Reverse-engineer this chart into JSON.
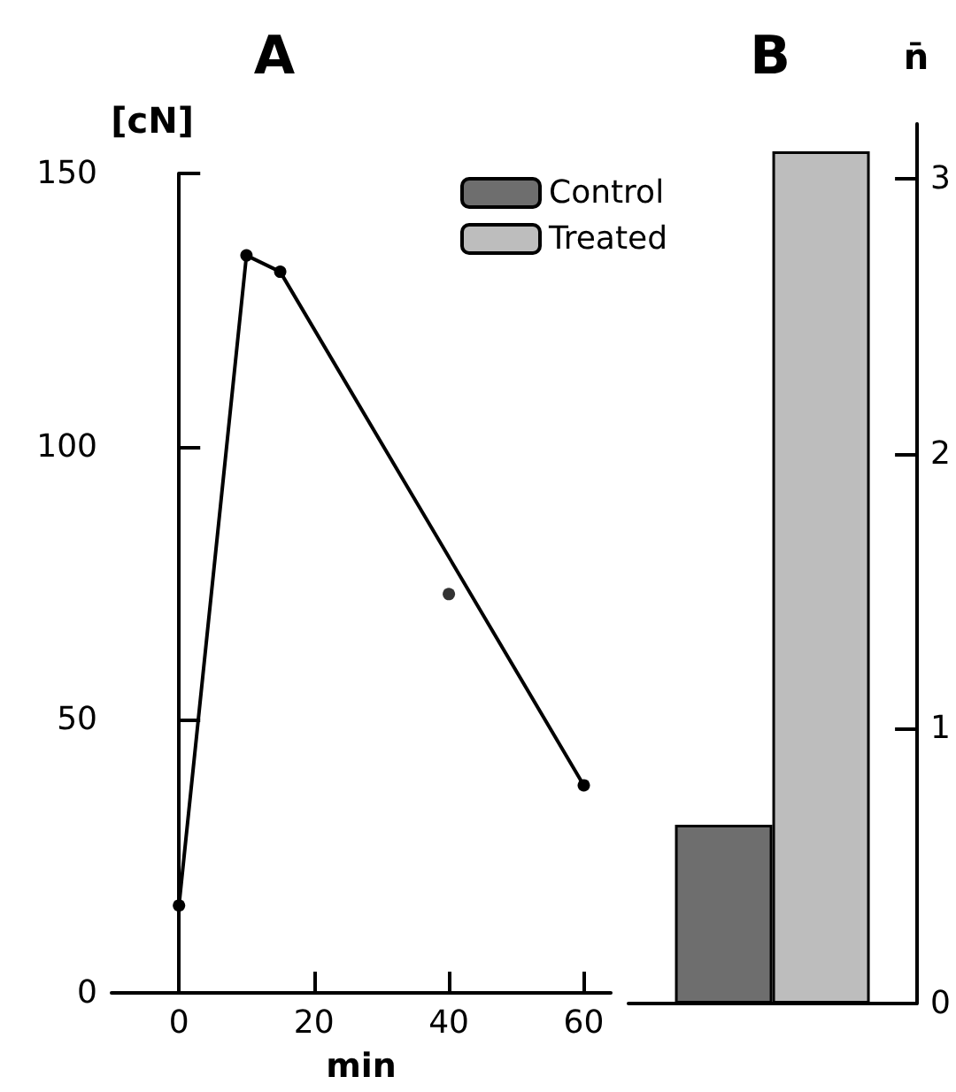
{
  "chart_data": [
    {
      "type": "line",
      "title": "A",
      "xlabel": "min",
      "ylabel": "[cN]",
      "xlim": [
        -10,
        64
      ],
      "xticks": [
        0,
        20,
        40,
        60
      ],
      "ylim": [
        0,
        150
      ],
      "yticks": [
        0,
        50,
        100,
        150
      ],
      "grid": false,
      "legend": false,
      "marker": "circle",
      "line_style": "solid",
      "series": [
        {
          "color": "#000000",
          "x": [
            0,
            10,
            15,
            60
          ],
          "values": [
            16,
            135,
            132,
            38
          ]
        },
        {
          "type": "scatter",
          "color": "#000000",
          "x": [
            40
          ],
          "values": [
            73
          ]
        }
      ]
    },
    {
      "type": "bar",
      "title": "B",
      "ylabel": "n̄",
      "categories": [
        null
      ],
      "ylim": [
        0,
        3.2
      ],
      "yticks": [
        0,
        1,
        2,
        3
      ],
      "grid": false,
      "legend": "top left",
      "series": [
        {
          "name": "Control",
          "color": "#6e6e6e",
          "values": [
            0.65
          ]
        },
        {
          "name": "Treated",
          "color": "#bdbdbd",
          "values": [
            3.1
          ]
        }
      ]
    }
  ]
}
